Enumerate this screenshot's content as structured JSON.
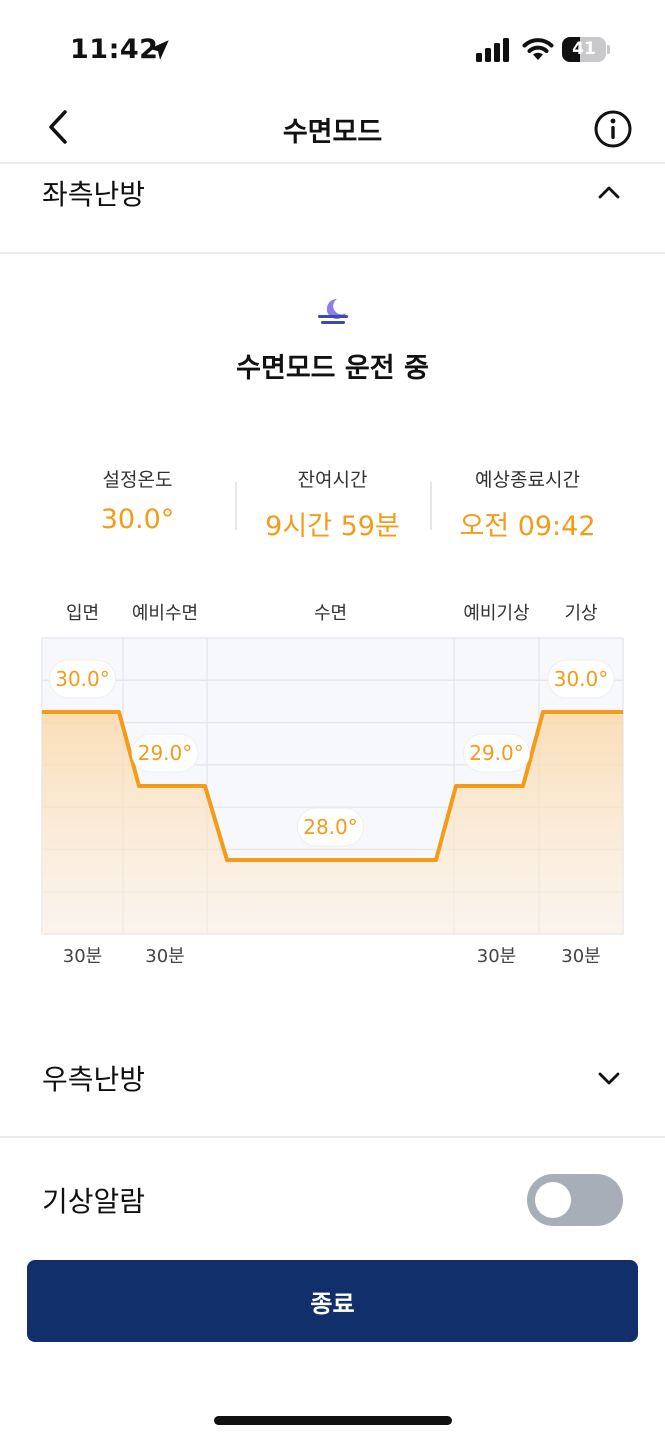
{
  "status_bar": {
    "time": "11:42",
    "battery": "41",
    "battery_level": 0.41,
    "icons": [
      "location-arrow-icon",
      "cellular-signal-icon",
      "wifi-icon",
      "battery-icon"
    ]
  },
  "nav": {
    "title": "수면모드",
    "icons": [
      "back-chevron-icon",
      "info-icon"
    ]
  },
  "left_section": {
    "title": "좌측난방",
    "expanded": true,
    "status_icon": "moon-icon",
    "status_text": "수면모드 운전 중",
    "info": [
      {
        "label": "설정온도",
        "value": "30.0°"
      },
      {
        "label": "잔여시간",
        "value": "9시간 59분"
      },
      {
        "label": "예상종료시간",
        "value": "오전 09:42"
      }
    ]
  },
  "chart_data": {
    "type": "line",
    "phases": [
      "입면",
      "예비수면",
      "수면",
      "예비기상",
      "기상"
    ],
    "values": [
      30.0,
      29.0,
      28.0,
      29.0,
      30.0
    ],
    "point_labels": [
      "30.0°",
      "29.0°",
      "28.0°",
      "29.0°",
      "30.0°"
    ],
    "durations": [
      "30분",
      "30분",
      "",
      "30분",
      "30분"
    ],
    "ylim": [
      27.0,
      31.0
    ],
    "grid": true,
    "line_color": "#f49b19"
  },
  "right_section": {
    "title": "우측난방",
    "expanded": false
  },
  "alarm": {
    "label": "기상알람",
    "enabled": false
  },
  "end_button": {
    "label": "종료"
  },
  "colors": {
    "accent": "#f49b19",
    "primary_button": "#11306b",
    "toggle_off": "#a8aeb8",
    "moon": "#8a7cf0"
  }
}
